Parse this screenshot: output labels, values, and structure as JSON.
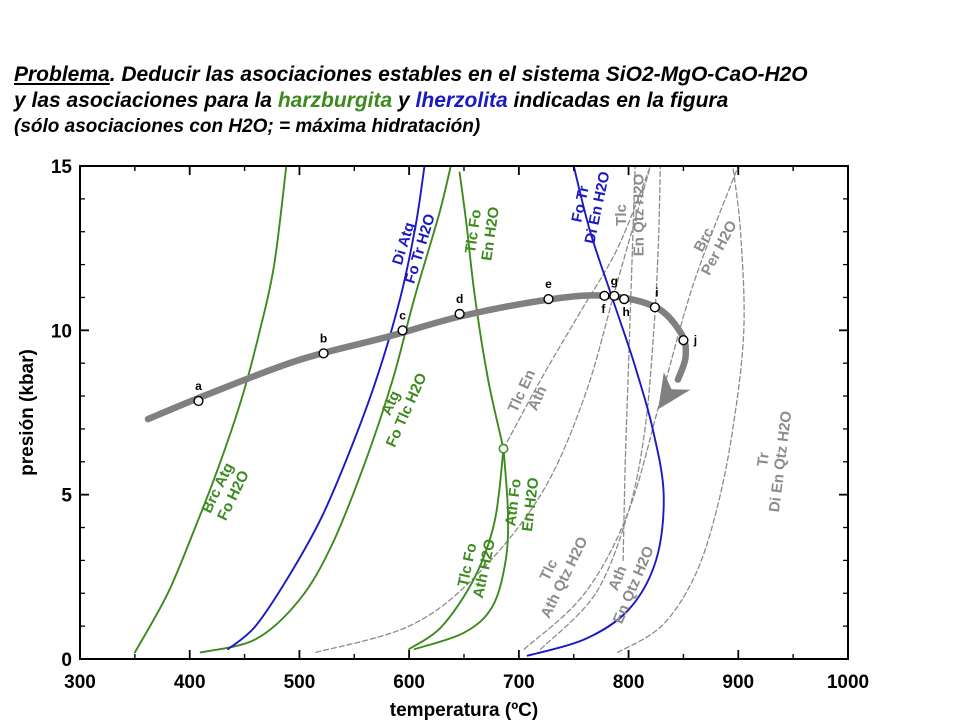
{
  "header": {
    "problem_word": "Problema",
    "line1_rest": ". Deducir las asociaciones estables en el sistema SiO2-MgO-CaO-H2O",
    "line2_a": "y las asociaciones para la ",
    "harz": "harzburgita",
    "line2_b": " y ",
    "lherz": "lherzolita",
    "line2_c": " indicadas en la figura",
    "line3": "(sólo asociaciones con H2O; = máxima hidratación)"
  },
  "colors": {
    "green": "#3d8a1f",
    "blue": "#1a1ac4",
    "gray": "#8c8c8c",
    "path": "#808080"
  },
  "chart_data": {
    "type": "line",
    "title": "",
    "xlabel": "temperatura (ºC)",
    "ylabel": "presión (kbar)",
    "xlim": [
      300,
      1000
    ],
    "ylim": [
      0,
      15
    ],
    "xticks": [
      300,
      400,
      500,
      600,
      700,
      800,
      900,
      1000
    ],
    "yticks": [
      0,
      5,
      10,
      15
    ],
    "series": [
      {
        "name": "Brc Atg = Fo H2O",
        "color": "green",
        "dashed": false,
        "label_lines": [
          "Brc Atg",
          "Fo H2O"
        ],
        "points": [
          [
            350,
            0.2
          ],
          [
            380,
            2
          ],
          [
            405,
            4
          ],
          [
            428,
            6
          ],
          [
            448,
            8
          ],
          [
            464,
            10
          ],
          [
            477,
            12
          ],
          [
            488,
            15
          ]
        ]
      },
      {
        "name": "Atg = Fo Tlc H2O",
        "color": "green",
        "dashed": false,
        "label_lines": [
          "Atg",
          "Fo Tlc H2O"
        ],
        "points": [
          [
            410,
            0.2
          ],
          [
            460,
            0.6
          ],
          [
            500,
            1.8
          ],
          [
            530,
            3.5
          ],
          [
            560,
            6
          ],
          [
            585,
            8.5
          ],
          [
            605,
            11
          ],
          [
            627,
            13.5
          ],
          [
            638,
            15
          ]
        ]
      },
      {
        "name": "Tlc Fo = En H2O",
        "color": "green",
        "dashed": false,
        "label_lines": [
          "Tlc Fo",
          "En H2O"
        ],
        "points": [
          [
            686,
            6.4
          ],
          [
            672,
            8.5
          ],
          [
            660,
            11
          ],
          [
            652,
            13.3
          ],
          [
            646,
            14.8
          ]
        ]
      },
      {
        "name": "Tlc Fo = Ath H2O",
        "color": "green",
        "dashed": false,
        "label_lines": [
          "Tlc Fo",
          "Ath H2O"
        ],
        "points": [
          [
            600,
            0.3
          ],
          [
            630,
            1
          ],
          [
            660,
            2.5
          ],
          [
            678,
            4.2
          ],
          [
            686,
            6.4
          ]
        ]
      },
      {
        "name": "Ath Fo = En H2O",
        "color": "green",
        "dashed": false,
        "label_lines": [
          "Ath Fo",
          "En H2O"
        ],
        "points": [
          [
            605,
            0.3
          ],
          [
            650,
            0.8
          ],
          [
            676,
            1.6
          ],
          [
            688,
            3
          ],
          [
            690,
            4.5
          ],
          [
            686,
            6.4
          ]
        ]
      },
      {
        "name": "Di Atg = Fo Tr H2O",
        "color": "blue",
        "dashed": false,
        "label_lines": [
          "Di Atg",
          "Fo Tr H2O"
        ],
        "points": [
          [
            435,
            0.3
          ],
          [
            460,
            1
          ],
          [
            490,
            2.5
          ],
          [
            520,
            4.3
          ],
          [
            548,
            6.5
          ],
          [
            572,
            8.7
          ],
          [
            592,
            11
          ],
          [
            606,
            13.2
          ],
          [
            614,
            15
          ]
        ]
      },
      {
        "name": "Fo Tr = Di En H2O",
        "color": "blue",
        "dashed": false,
        "label_lines": [
          "Fo Tr",
          "Di En H2O"
        ],
        "points": [
          [
            708,
            0.1
          ],
          [
            760,
            0.6
          ],
          [
            800,
            1.5
          ],
          [
            825,
            3
          ],
          [
            832,
            5
          ],
          [
            822,
            7
          ],
          [
            805,
            9
          ],
          [
            785,
            11
          ],
          [
            765,
            13
          ],
          [
            750,
            15
          ]
        ]
      },
      {
        "name": "Tlc Fo = En Qtz H2O",
        "color": "gray",
        "dashed": true,
        "label_lines": [
          "Tlc",
          "En Qtz H2O"
        ],
        "points": [
          [
            795,
            3
          ],
          [
            797,
            6
          ],
          [
            800,
            9
          ],
          [
            803,
            12
          ],
          [
            806,
            15
          ]
        ]
      },
      {
        "name": "Brc = Per H2O",
        "color": "gray",
        "dashed": true,
        "label_lines": [
          "Brc",
          "Per H2O"
        ],
        "points": [
          [
            705,
            0.3
          ],
          [
            760,
            2
          ],
          [
            800,
            4.5
          ],
          [
            830,
            8
          ],
          [
            860,
            11.5
          ],
          [
            900,
            15
          ]
        ]
      },
      {
        "name": "Tlc En = Ath",
        "color": "gray",
        "dashed": true,
        "label_lines": [
          "Tlc En",
          "Ath"
        ],
        "points": [
          [
            686,
            6.4
          ],
          [
            720,
            8.5
          ],
          [
            755,
            10.5
          ],
          [
            790,
            12.5
          ],
          [
            820,
            15
          ]
        ]
      },
      {
        "name": "Tlc = Ath Qtz H2O",
        "color": "gray",
        "dashed": true,
        "label_lines": [
          "Tlc",
          "Ath Qtz H2O"
        ],
        "points": [
          [
            515,
            0.2
          ],
          [
            600,
            1
          ],
          [
            660,
            2.5
          ],
          [
            720,
            5
          ],
          [
            760,
            8
          ],
          [
            790,
            11.5
          ],
          [
            820,
            15
          ]
        ]
      },
      {
        "name": "Ath = En Qtz H2O",
        "color": "gray",
        "dashed": true,
        "label_lines": [
          "Ath",
          "En Qtz H2O"
        ],
        "points": [
          [
            720,
            0.3
          ],
          [
            770,
            2
          ],
          [
            800,
            4.5
          ],
          [
            815,
            7
          ],
          [
            823,
            10
          ],
          [
            827,
            12.5
          ],
          [
            829,
            15
          ]
        ]
      },
      {
        "name": "Tr = Di En Qtz H2O",
        "color": "gray",
        "dashed": true,
        "label_lines": [
          "Tr",
          "Di En Qtz H2O"
        ],
        "points": [
          [
            790,
            0.2
          ],
          [
            830,
            1
          ],
          [
            860,
            2.5
          ],
          [
            880,
            4.5
          ],
          [
            895,
            7
          ],
          [
            905,
            10
          ],
          [
            902,
            13
          ],
          [
            895,
            15
          ]
        ]
      }
    ],
    "path": {
      "name": "trayectoria P-T",
      "points": [
        [
          362,
          7.3
        ],
        [
          420,
          8.1
        ],
        [
          500,
          9.1
        ],
        [
          580,
          9.8
        ],
        [
          650,
          10.45
        ],
        [
          730,
          10.95
        ],
        [
          780,
          11.05
        ],
        [
          825,
          10.7
        ],
        [
          848,
          9.9
        ],
        [
          852,
          9.2
        ],
        [
          845,
          8.5
        ]
      ],
      "arrow_tip": [
        827,
        7.6
      ]
    },
    "stations": [
      {
        "label": "a",
        "x": 408,
        "y": 7.85
      },
      {
        "label": "b",
        "x": 522,
        "y": 9.3
      },
      {
        "label": "c",
        "x": 594,
        "y": 10.0
      },
      {
        "label": "d",
        "x": 646,
        "y": 10.5
      },
      {
        "label": "e",
        "x": 727,
        "y": 10.95
      },
      {
        "label": "f",
        "x": 778,
        "y": 11.05
      },
      {
        "label": "g",
        "x": 787,
        "y": 11.05
      },
      {
        "label": "h",
        "x": 796,
        "y": 10.95
      },
      {
        "label": "i",
        "x": 824,
        "y": 10.7
      },
      {
        "label": "j",
        "x": 850,
        "y": 9.7
      }
    ],
    "invariant_point": {
      "x": 686,
      "y": 6.4
    }
  }
}
